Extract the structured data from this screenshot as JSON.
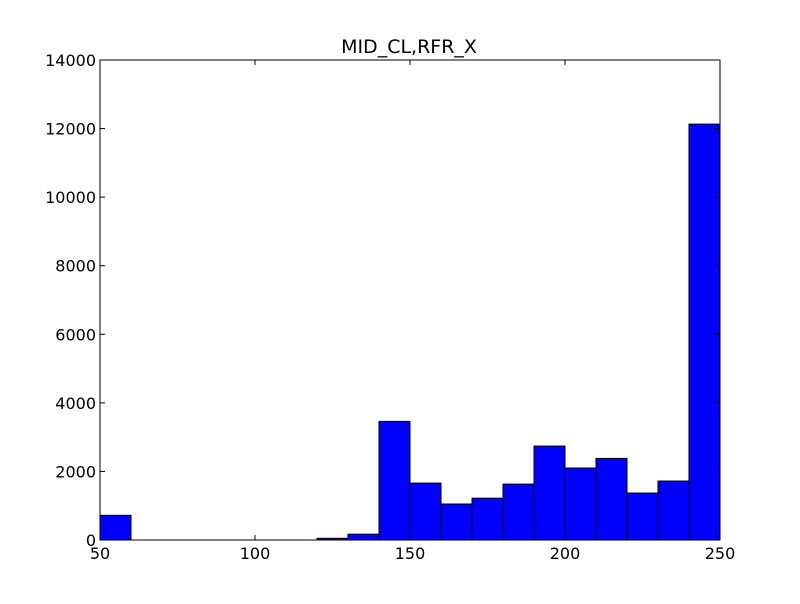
{
  "chart_data": {
    "type": "bar",
    "title": "MID_CL,RFR_X",
    "xlabel": "",
    "ylabel": "",
    "xlim": [
      50,
      250
    ],
    "ylim": [
      0,
      14000
    ],
    "x_ticks": [
      50,
      100,
      150,
      200,
      250
    ],
    "y_ticks": [
      0,
      2000,
      4000,
      6000,
      8000,
      10000,
      12000,
      14000
    ],
    "bar_color": "#0000ff",
    "edge_color": "#000000",
    "grid": false,
    "bins": [
      {
        "start": 50,
        "end": 60,
        "value": 720
      },
      {
        "start": 60,
        "end": 70,
        "value": 0
      },
      {
        "start": 70,
        "end": 80,
        "value": 0
      },
      {
        "start": 80,
        "end": 90,
        "value": 0
      },
      {
        "start": 90,
        "end": 100,
        "value": 0
      },
      {
        "start": 100,
        "end": 110,
        "value": 0
      },
      {
        "start": 110,
        "end": 120,
        "value": 0
      },
      {
        "start": 120,
        "end": 130,
        "value": 50
      },
      {
        "start": 130,
        "end": 140,
        "value": 170
      },
      {
        "start": 140,
        "end": 150,
        "value": 3460
      },
      {
        "start": 150,
        "end": 160,
        "value": 1660
      },
      {
        "start": 160,
        "end": 170,
        "value": 1050
      },
      {
        "start": 170,
        "end": 180,
        "value": 1220
      },
      {
        "start": 180,
        "end": 190,
        "value": 1630
      },
      {
        "start": 190,
        "end": 200,
        "value": 2740
      },
      {
        "start": 200,
        "end": 210,
        "value": 2100
      },
      {
        "start": 210,
        "end": 220,
        "value": 2380
      },
      {
        "start": 220,
        "end": 230,
        "value": 1370
      },
      {
        "start": 230,
        "end": 240,
        "value": 1720
      },
      {
        "start": 240,
        "end": 250,
        "value": 12130
      }
    ]
  }
}
